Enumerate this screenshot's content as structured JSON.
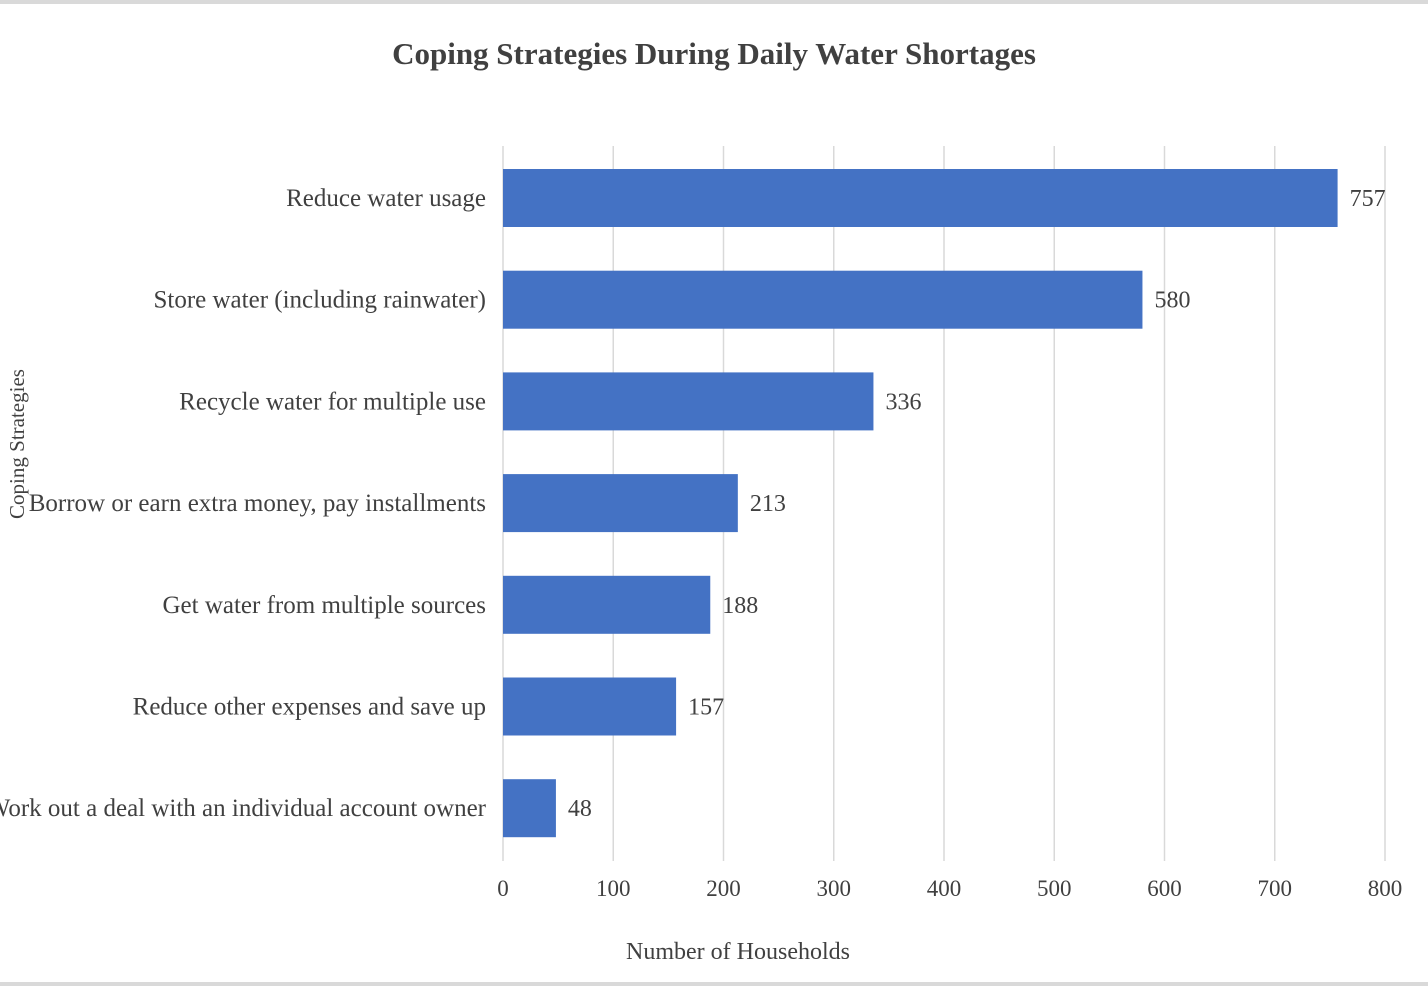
{
  "chart_data": {
    "type": "bar",
    "orientation": "horizontal",
    "title": "Coping Strategies During Daily Water Shortages",
    "xlabel": "Number of Households",
    "ylabel": "Coping Strategies",
    "categories": [
      "Reduce water usage",
      "Store water (including rainwater)",
      "Recycle water for multiple use",
      "Borrow or earn extra money, pay installments",
      "Get water from multiple sources",
      "Reduce other expenses and save up",
      "Work out a deal with an individual account owner"
    ],
    "values": [
      757,
      580,
      336,
      213,
      188,
      157,
      48
    ],
    "xlim": [
      0,
      800
    ],
    "xticks": [
      0,
      100,
      200,
      300,
      400,
      500,
      600,
      700,
      800
    ],
    "grid": "vertical",
    "data_labels": true,
    "legend": "none",
    "colors": {
      "bar": "#4472c4",
      "grid": "#d9d9d9",
      "text": "#404040",
      "title": "#404040"
    }
  }
}
